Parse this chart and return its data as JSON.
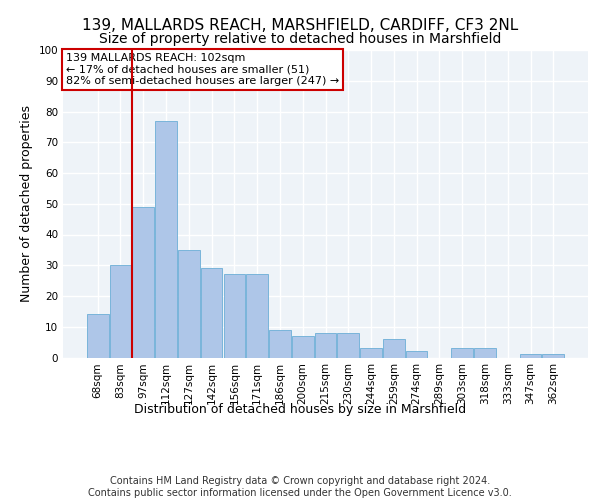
{
  "title1": "139, MALLARDS REACH, MARSHFIELD, CARDIFF, CF3 2NL",
  "title2": "Size of property relative to detached houses in Marshfield",
  "xlabel": "Distribution of detached houses by size in Marshfield",
  "ylabel": "Number of detached properties",
  "bin_labels": [
    "68sqm",
    "83sqm",
    "97sqm",
    "112sqm",
    "127sqm",
    "142sqm",
    "156sqm",
    "171sqm",
    "186sqm",
    "200sqm",
    "215sqm",
    "230sqm",
    "244sqm",
    "259sqm",
    "274sqm",
    "289sqm",
    "303sqm",
    "318sqm",
    "333sqm",
    "347sqm",
    "362sqm"
  ],
  "bar_heights": [
    14,
    30,
    49,
    77,
    35,
    29,
    27,
    27,
    9,
    7,
    8,
    8,
    3,
    6,
    2,
    0,
    3,
    3,
    0,
    1,
    1
  ],
  "bar_color": "#aec6e8",
  "bar_edge_color": "#6baed6",
  "vline_index": 2,
  "vline_color": "#cc0000",
  "annotation_text": "139 MALLARDS REACH: 102sqm\n← 17% of detached houses are smaller (51)\n82% of semi-detached houses are larger (247) →",
  "annotation_box_color": "#ffffff",
  "annotation_box_edge": "#cc0000",
  "ylim": [
    0,
    100
  ],
  "yticks": [
    0,
    10,
    20,
    30,
    40,
    50,
    60,
    70,
    80,
    90,
    100
  ],
  "footer": "Contains HM Land Registry data © Crown copyright and database right 2024.\nContains public sector information licensed under the Open Government Licence v3.0.",
  "bg_color": "#eef3f8",
  "grid_color": "#ffffff",
  "title1_fontsize": 11,
  "title2_fontsize": 10,
  "xlabel_fontsize": 9,
  "ylabel_fontsize": 9,
  "tick_fontsize": 7.5,
  "footer_fontsize": 7,
  "annotation_fontsize": 8
}
